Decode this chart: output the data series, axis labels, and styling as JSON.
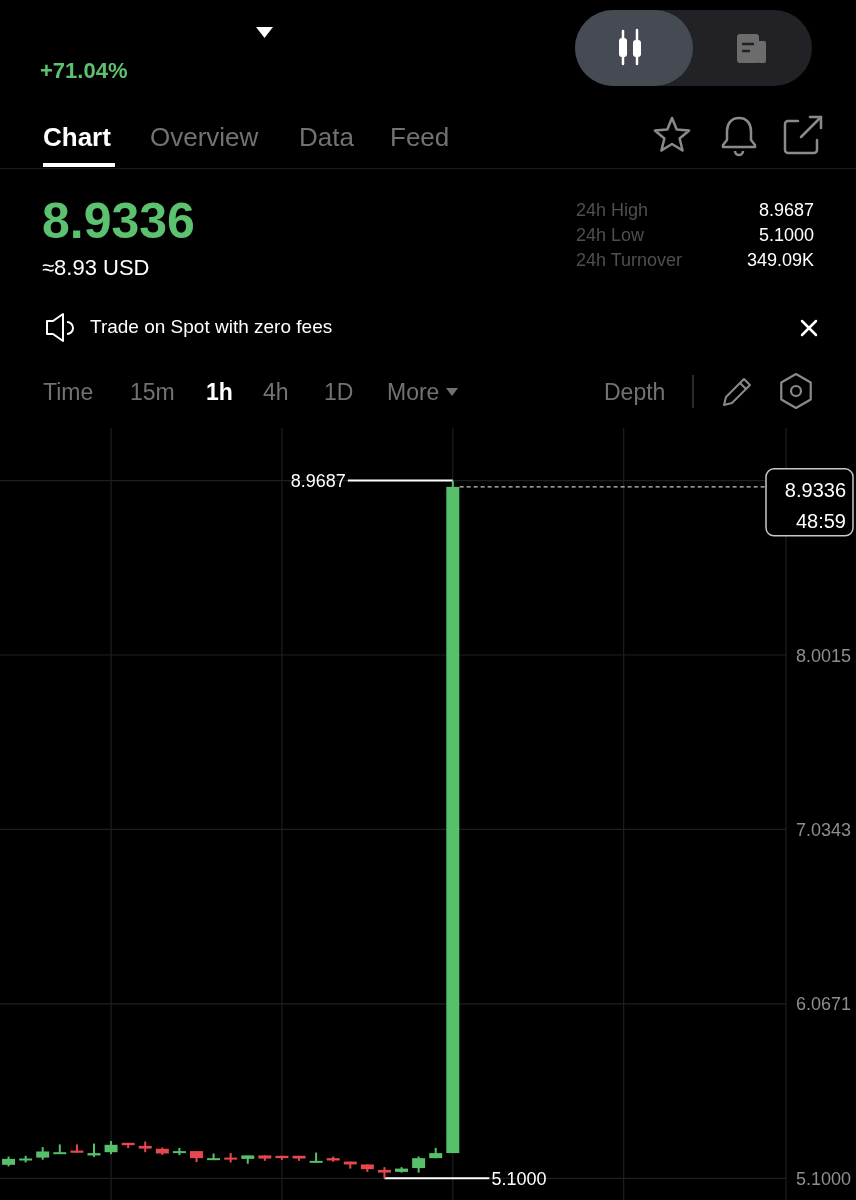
{
  "chart_data": {
    "type": "candlestick",
    "subtitle": "+71.04%",
    "categories": [
      null,
      null,
      null,
      null,
      null,
      null,
      null,
      null,
      null,
      null,
      null,
      null,
      null,
      null,
      null,
      null,
      null,
      null,
      null,
      null,
      null,
      null,
      null,
      null,
      null,
      null,
      null,
      null,
      null,
      null,
      null,
      null,
      null,
      null,
      null,
      null,
      null,
      null,
      null,
      null,
      null,
      null,
      null,
      null,
      null,
      null
    ],
    "ohlc": [
      [
        5.175,
        5.221,
        5.166,
        5.208
      ],
      [
        5.199,
        5.225,
        5.188,
        5.21
      ],
      [
        5.215,
        5.273,
        5.203,
        5.249
      ],
      [
        5.238,
        5.288,
        5.238,
        5.245
      ],
      [
        5.254,
        5.288,
        5.242,
        5.242
      ],
      [
        5.227,
        5.293,
        5.219,
        5.24
      ],
      [
        5.245,
        5.307,
        5.234,
        5.286
      ],
      [
        5.297,
        5.297,
        5.268,
        5.284
      ],
      [
        5.28,
        5.304,
        5.245,
        5.265
      ],
      [
        5.264,
        5.271,
        5.23,
        5.238
      ],
      [
        5.24,
        5.269,
        5.229,
        5.251
      ],
      [
        5.251,
        5.251,
        5.19,
        5.212
      ],
      [
        5.201,
        5.238,
        5.201,
        5.212
      ],
      [
        5.215,
        5.24,
        5.188,
        5.204
      ],
      [
        5.208,
        5.227,
        5.181,
        5.227
      ],
      [
        5.227,
        5.227,
        5.197,
        5.21
      ],
      [
        5.225,
        5.225,
        5.203,
        5.212
      ],
      [
        5.225,
        5.225,
        5.197,
        5.21
      ],
      [
        5.188,
        5.243,
        5.188,
        5.197
      ],
      [
        5.212,
        5.221,
        5.192,
        5.199
      ],
      [
        5.193,
        5.193,
        5.154,
        5.177
      ],
      [
        5.177,
        5.177,
        5.136,
        5.151
      ],
      [
        5.147,
        5.162,
        5.1,
        5.132
      ],
      [
        5.136,
        5.162,
        5.132,
        5.154
      ],
      [
        5.157,
        5.221,
        5.132,
        5.212
      ],
      [
        5.212,
        5.269,
        5.212,
        5.24
      ],
      [
        5.24,
        8.9687,
        5.24,
        8.9336
      ],
      null,
      null,
      null,
      null,
      null,
      null,
      null,
      null,
      null,
      null,
      null,
      null,
      null,
      null,
      null,
      null,
      null,
      null,
      null
    ],
    "colors": [
      "#56c06b",
      "#56c06b",
      "#56c06b",
      "#56c06b",
      "#e5484f",
      "#56c06b",
      "#56c06b",
      "#e5484f",
      "#e5484f",
      "#e5484f",
      "#56c06b",
      "#e5484f",
      "#56c06b",
      "#e5484f",
      "#56c06b",
      "#e5484f",
      "#e5484f",
      "#e5484f",
      "#56c06b",
      "#e5484f",
      "#e5484f",
      "#e5484f",
      "#e5484f",
      "#56c06b",
      "#56c06b",
      "#56c06b",
      "#56c06b",
      null,
      null,
      null,
      null,
      null,
      null,
      null,
      null,
      null,
      null,
      null,
      null,
      null,
      null,
      null,
      null,
      null,
      null,
      null
    ],
    "ylim": [
      4.98,
      9.26
    ],
    "yticks": [
      {
        "value": 5.1,
        "label": "5.1000"
      },
      6.0671,
      7.0343,
      8.0015,
      {
        "value": 8.9687,
        "label": null
      }
    ],
    "grid": true,
    "ref_lines": [
      {
        "axis": "y",
        "value": 8.9336,
        "label": "8.9336",
        "line_style": "dashed",
        "color": "#c8c8c8"
      }
    ],
    "annotations": [
      "Chart",
      "Overview",
      "Data",
      "Feed",
      "8.9336",
      "≈8.93 USD",
      "24h High",
      "8.9687",
      "24h Low",
      "5.1000",
      "24h Turnover",
      "349.09K",
      "Trade on Spot with zero fees",
      "Time",
      "15m",
      "1h",
      "4h",
      "1D",
      "More",
      "Depth",
      "48:59",
      "8.9687",
      "5.1000"
    ]
  }
}
